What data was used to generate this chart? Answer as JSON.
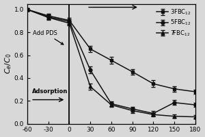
{
  "title": "",
  "xlabel": "",
  "ylabel": "$C_e/C_0$",
  "xlim": [
    -60,
    180
  ],
  "ylim": [
    0.0,
    1.05
  ],
  "xticks": [
    -60,
    -30,
    0,
    30,
    60,
    90,
    120,
    150,
    180
  ],
  "yticks": [
    0.0,
    0.2,
    0.4,
    0.6,
    0.8,
    1.0
  ],
  "vline_x": 0,
  "adsorption_label": "Adsorption",
  "add_pds_label": "Add PDS",
  "series": [
    {
      "label": "3FBC$_{12}$",
      "marker": "s",
      "x": [
        -60,
        -30,
        0,
        30,
        60,
        90,
        120,
        150,
        180
      ],
      "y": [
        1.0,
        0.945,
        0.905,
        0.655,
        0.555,
        0.455,
        0.35,
        0.305,
        0.28
      ],
      "yerr": [
        0.01,
        0.02,
        0.02,
        0.025,
        0.03,
        0.025,
        0.03,
        0.025,
        0.02
      ]
    },
    {
      "label": "5FBC$_{12}$",
      "marker": "o",
      "x": [
        -60,
        -30,
        0,
        30,
        60,
        90,
        120,
        150,
        180
      ],
      "y": [
        1.0,
        0.935,
        0.895,
        0.47,
        0.175,
        0.13,
        0.09,
        0.185,
        0.165
      ],
      "yerr": [
        0.01,
        0.02,
        0.02,
        0.03,
        0.02,
        0.02,
        0.02,
        0.02,
        0.02
      ]
    },
    {
      "label": "7FBC$_{12}$",
      "marker": "^",
      "x": [
        -60,
        -30,
        0,
        30,
        60,
        90,
        120,
        150,
        180
      ],
      "y": [
        1.0,
        0.93,
        0.88,
        0.325,
        0.165,
        0.115,
        0.08,
        0.065,
        0.06
      ],
      "yerr": [
        0.01,
        0.02,
        0.02,
        0.025,
        0.02,
        0.02,
        0.015,
        0.015,
        0.015
      ]
    }
  ],
  "line_color": "#111111",
  "bg_color": "#d8d8d8"
}
